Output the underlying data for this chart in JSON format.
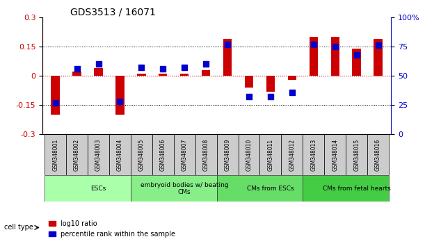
{
  "title": "GDS3513 / 16071",
  "samples": [
    "GSM348001",
    "GSM348002",
    "GSM348003",
    "GSM348004",
    "GSM348005",
    "GSM348006",
    "GSM348007",
    "GSM348008",
    "GSM348009",
    "GSM348010",
    "GSM348011",
    "GSM348012",
    "GSM348013",
    "GSM348014",
    "GSM348015",
    "GSM348016"
  ],
  "log10_ratio": [
    -0.2,
    0.02,
    0.04,
    -0.2,
    0.01,
    0.01,
    0.01,
    0.03,
    0.19,
    -0.06,
    -0.08,
    -0.02,
    0.2,
    0.2,
    0.14,
    0.19
  ],
  "percentile_rank": [
    27,
    56,
    60,
    28,
    57,
    56,
    57,
    60,
    77,
    32,
    32,
    36,
    77,
    75,
    68,
    76
  ],
  "bar_color": "#cc0000",
  "dot_color": "#0000cc",
  "ylim_left": [
    -0.3,
    0.3
  ],
  "ylim_right": [
    0,
    100
  ],
  "yticks_left": [
    -0.3,
    -0.15,
    0,
    0.15,
    0.3
  ],
  "yticks_right": [
    0,
    25,
    50,
    75,
    100
  ],
  "ytick_labels_left": [
    "-0.3",
    "-0.15",
    "0",
    "0.15",
    "0.3"
  ],
  "ytick_labels_right": [
    "0",
    "25",
    "50",
    "75",
    "100%"
  ],
  "hlines": [
    0.15,
    -0.15
  ],
  "cell_type_groups": [
    {
      "label": "ESCs",
      "start": 0,
      "end": 4,
      "color": "#aaffaa"
    },
    {
      "label": "embryoid bodies w/ beating\nCMs",
      "start": 4,
      "end": 8,
      "color": "#88ee88"
    },
    {
      "label": "CMs from ESCs",
      "start": 8,
      "end": 12,
      "color": "#66dd66"
    },
    {
      "label": "CMs from fetal hearts",
      "start": 12,
      "end": 16,
      "color": "#44cc44"
    }
  ],
  "cell_type_label": "cell type",
  "legend_red_label": "log10 ratio",
  "legend_blue_label": "percentile rank within the sample",
  "bar_width": 0.4,
  "dot_marker": "s",
  "dot_size": 30
}
